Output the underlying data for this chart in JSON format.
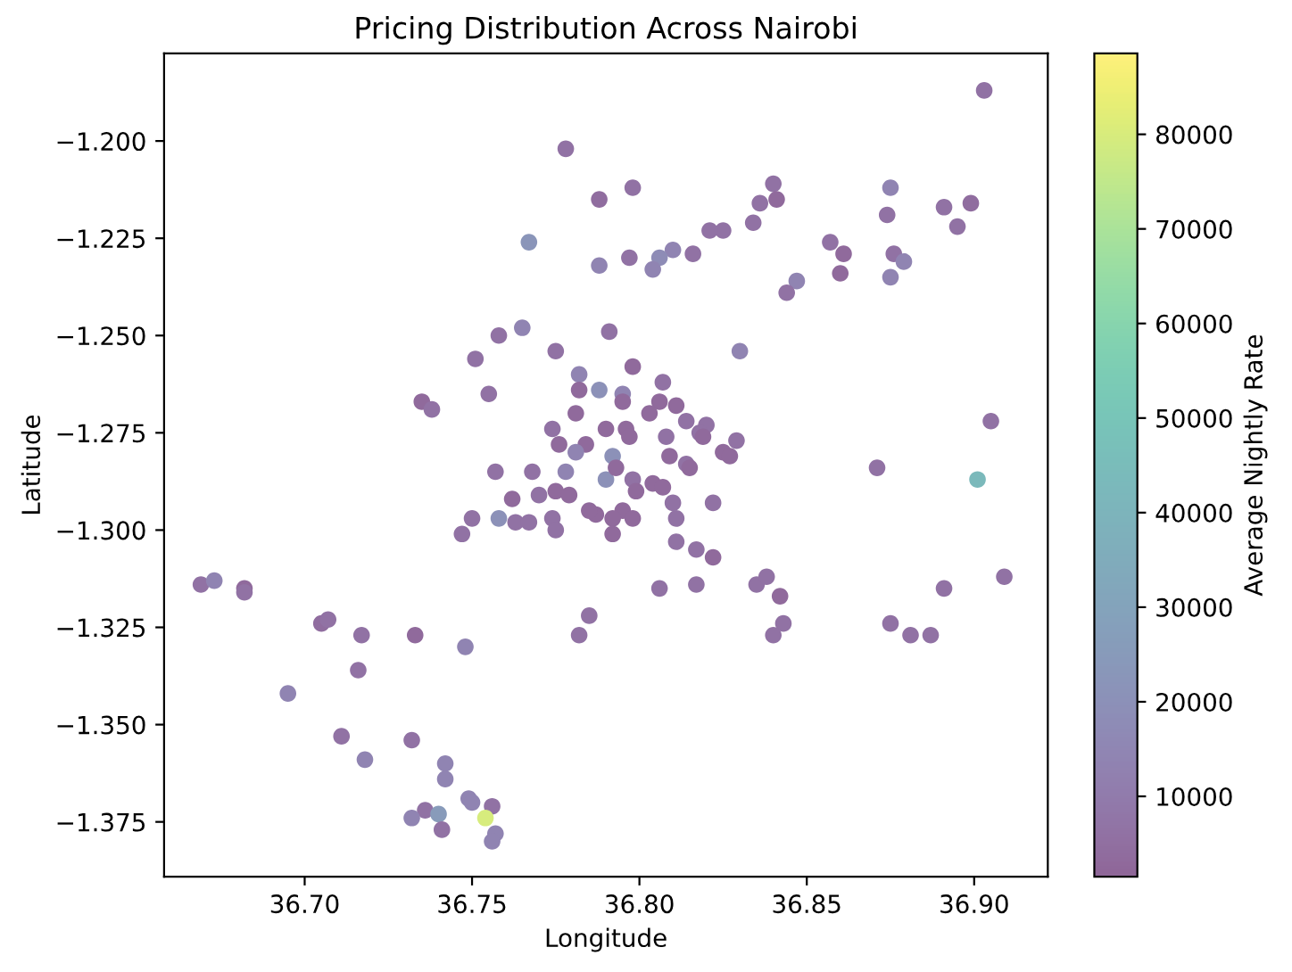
{
  "chart_data": {
    "type": "scatter",
    "title": "Pricing Distribution Across Nairobi",
    "xlabel": "Longitude",
    "ylabel": "Latitude",
    "clabel": "Average Nightly Rate",
    "marker": "circle",
    "grid": false,
    "xlim": [
      36.658,
      36.922
    ],
    "ylim": [
      -1.3891,
      -1.1775
    ],
    "xticks": [
      {
        "value": 36.7,
        "label": "36.70"
      },
      36.75,
      {
        "value": 36.8,
        "label": "36.80"
      },
      36.85,
      {
        "value": 36.9,
        "label": "36.90"
      }
    ],
    "yticks": [
      {
        "value": -1.2,
        "label": "−1.200"
      },
      {
        "value": -1.225,
        "label": "−1.225"
      },
      {
        "value": -1.25,
        "label": "−1.250"
      },
      {
        "value": -1.275,
        "label": "−1.275"
      },
      {
        "value": -1.3,
        "label": "−1.300"
      },
      {
        "value": -1.325,
        "label": "−1.325"
      },
      {
        "value": -1.35,
        "label": "−1.350"
      },
      {
        "value": -1.375,
        "label": "−1.375"
      }
    ],
    "clim": [
      1500,
      88550
    ],
    "cticks": [
      10000,
      20000,
      30000,
      40000,
      50000,
      60000,
      70000,
      80000
    ],
    "x": [
      36.778,
      36.788,
      36.767,
      36.788,
      36.758,
      36.765,
      36.751,
      36.775,
      36.755,
      36.735,
      36.738,
      36.782,
      36.782,
      36.788,
      36.774,
      36.784,
      36.781,
      36.903,
      36.798,
      36.84,
      36.841,
      36.836,
      36.834,
      36.825,
      36.821,
      36.875,
      36.874,
      36.891,
      36.899,
      36.895,
      36.857,
      36.861,
      36.86,
      36.847,
      36.844,
      36.876,
      36.879,
      36.875,
      36.797,
      36.81,
      36.806,
      36.804,
      36.816,
      36.791,
      36.83,
      36.798,
      36.795,
      36.806,
      36.807,
      36.814,
      36.82,
      36.818,
      36.808,
      36.79,
      36.829,
      36.825,
      36.827,
      36.905,
      36.871,
      36.814,
      36.792,
      36.901,
      36.798,
      36.81,
      36.822,
      36.811,
      36.811,
      36.817,
      36.822,
      36.806,
      36.817,
      36.835,
      36.838,
      36.842,
      36.843,
      36.84,
      36.875,
      36.881,
      36.887,
      36.891,
      36.909,
      36.785,
      36.795,
      36.79,
      36.792,
      36.787,
      36.757,
      36.768,
      36.778,
      36.762,
      36.77,
      36.775,
      36.779,
      36.785,
      36.758,
      36.75,
      36.747,
      36.763,
      36.774,
      36.775,
      36.767,
      36.669,
      36.673,
      36.682,
      36.682,
      36.705,
      36.707,
      36.717,
      36.733,
      36.748,
      36.716,
      36.695,
      36.782,
      36.711,
      36.718,
      36.732,
      36.742,
      36.742,
      36.749,
      36.75,
      36.756,
      36.736,
      36.74,
      36.732,
      36.741,
      36.754,
      36.757,
      36.756,
      36.796,
      36.793,
      36.799,
      36.804,
      36.792,
      36.798,
      36.807,
      36.809,
      36.815,
      36.795,
      36.797,
      36.803,
      36.811,
      36.819,
      36.781,
      36.776
    ],
    "values": [
      -1.202,
      -1.215,
      -1.226,
      -1.232,
      -1.25,
      -1.248,
      -1.256,
      -1.254,
      -1.265,
      -1.267,
      -1.269,
      -1.26,
      -1.264,
      -1.264,
      -1.274,
      -1.278,
      -1.28,
      -1.187,
      -1.212,
      -1.211,
      -1.215,
      -1.216,
      -1.221,
      -1.223,
      -1.223,
      -1.212,
      -1.219,
      -1.217,
      -1.216,
      -1.222,
      -1.226,
      -1.229,
      -1.234,
      -1.236,
      -1.239,
      -1.229,
      -1.231,
      -1.235,
      -1.23,
      -1.228,
      -1.23,
      -1.233,
      -1.229,
      -1.249,
      -1.254,
      -1.258,
      -1.265,
      -1.267,
      -1.262,
      -1.272,
      -1.273,
      -1.275,
      -1.276,
      -1.274,
      -1.277,
      -1.28,
      -1.281,
      -1.272,
      -1.284,
      -1.283,
      -1.281,
      -1.287,
      -1.287,
      -1.293,
      -1.293,
      -1.297,
      -1.303,
      -1.305,
      -1.307,
      -1.315,
      -1.314,
      -1.314,
      -1.312,
      -1.317,
      -1.324,
      -1.327,
      -1.324,
      -1.327,
      -1.327,
      -1.315,
      -1.312,
      -1.322,
      -1.295,
      -1.287,
      -1.297,
      -1.296,
      -1.285,
      -1.285,
      -1.285,
      -1.292,
      -1.291,
      -1.29,
      -1.291,
      -1.295,
      -1.297,
      -1.297,
      -1.301,
      -1.298,
      -1.297,
      -1.3,
      -1.298,
      -1.314,
      -1.313,
      -1.315,
      -1.316,
      -1.324,
      -1.323,
      -1.327,
      -1.327,
      -1.33,
      -1.336,
      -1.342,
      -1.327,
      -1.353,
      -1.359,
      -1.354,
      -1.36,
      -1.364,
      -1.369,
      -1.37,
      -1.371,
      -1.372,
      -1.373,
      -1.374,
      -1.377,
      -1.374,
      -1.378,
      -1.38,
      -1.274,
      -1.284,
      -1.29,
      -1.288,
      -1.301,
      -1.297,
      -1.289,
      -1.281,
      -1.284,
      -1.267,
      -1.276,
      -1.27,
      -1.268,
      -1.276,
      -1.27,
      -1.278
    ],
    "cvalues": [
      6000,
      4000,
      22000,
      14000,
      6000,
      14000,
      6000,
      6000,
      6000,
      3000,
      6000,
      14000,
      3000,
      20000,
      6000,
      3000,
      14000,
      6000,
      6000,
      6000,
      3000,
      6000,
      6000,
      6000,
      6000,
      14000,
      6000,
      6000,
      4000,
      6000,
      6000,
      3000,
      3000,
      14000,
      6000,
      6000,
      14000,
      14000,
      6000,
      14000,
      18000,
      14000,
      6000,
      6000,
      14000,
      3000,
      14000,
      3000,
      6000,
      6000,
      6000,
      6000,
      6000,
      3000,
      6000,
      3000,
      3000,
      6000,
      6000,
      6000,
      20000,
      43000,
      6000,
      6000,
      6000,
      6000,
      6000,
      6000,
      3000,
      6000,
      6000,
      6000,
      6000,
      3000,
      6000,
      6000,
      6000,
      6000,
      6000,
      6000,
      6000,
      6000,
      3000,
      20000,
      3000,
      3000,
      6000,
      6000,
      14000,
      3000,
      6000,
      3000,
      3000,
      3000,
      20000,
      6000,
      6000,
      6000,
      6000,
      6000,
      6000,
      6000,
      14000,
      3000,
      6000,
      4000,
      6000,
      6000,
      3000,
      14000,
      6000,
      14000,
      6000,
      6000,
      14000,
      6000,
      14000,
      14000,
      14000,
      14000,
      6000,
      6000,
      25000,
      14000,
      6000,
      80000,
      14000,
      14000,
      3000,
      3000,
      3000,
      3000,
      3000,
      3000,
      3000,
      3000,
      3000,
      3000,
      3000,
      3000,
      3000,
      3000,
      3000,
      3000
    ]
  }
}
